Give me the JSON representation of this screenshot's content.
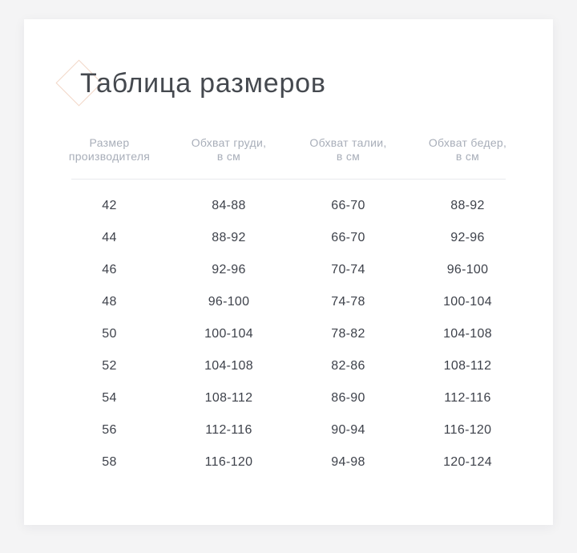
{
  "title": "Таблица размеров",
  "icon": {
    "name": "diamond-outline",
    "color": "#f2d6c6"
  },
  "colors": {
    "page_background": "#f4f4f5",
    "card_background": "#ffffff",
    "title_text": "#45494f",
    "header_text": "#a8aeb9",
    "cell_text": "#3e424b",
    "divider": "#e9eaed",
    "diamond_accent": "#f2d6c6"
  },
  "table": {
    "columns": [
      {
        "line1": "Размер",
        "line2": "производителя"
      },
      {
        "line1": "Обхват груди,",
        "line2": "в см"
      },
      {
        "line1": "Обхват талии,",
        "line2": "в см"
      },
      {
        "line1": "Обхват бедер,",
        "line2": "в см"
      }
    ],
    "rows": [
      [
        "42",
        "84-88",
        "66-70",
        "88-92"
      ],
      [
        "44",
        "88-92",
        "66-70",
        "92-96"
      ],
      [
        "46",
        "92-96",
        "70-74",
        "96-100"
      ],
      [
        "48",
        "96-100",
        "74-78",
        "100-104"
      ],
      [
        "50",
        "100-104",
        "78-82",
        "104-108"
      ],
      [
        "52",
        "104-108",
        "82-86",
        "108-112"
      ],
      [
        "54",
        "108-112",
        "86-90",
        "112-116"
      ],
      [
        "56",
        "112-116",
        "90-94",
        "116-120"
      ],
      [
        "58",
        "116-120",
        "94-98",
        "120-124"
      ]
    ]
  }
}
